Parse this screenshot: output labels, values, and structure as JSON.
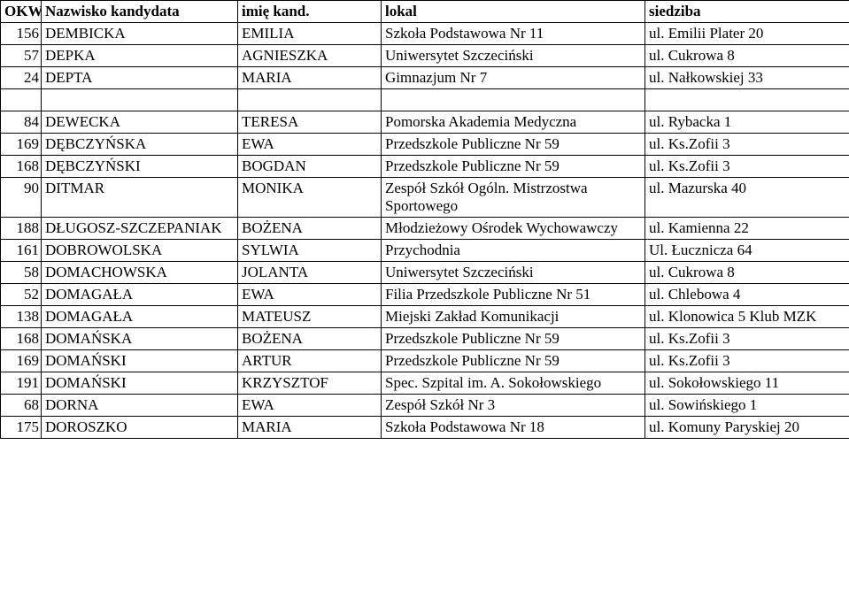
{
  "header": {
    "okw": "OKW",
    "nazwisko": "Nazwisko kandydata",
    "imie": "imię kand.",
    "lokal": "lokal",
    "siedziba": "siedziba"
  },
  "rows": [
    {
      "okw": "156",
      "nazwisko": "DEMBICKA",
      "imie": "EMILIA",
      "lokal": "Szkoła Podstawowa Nr 11",
      "siedziba": "ul. Emilii Plater 20"
    },
    {
      "okw": "57",
      "nazwisko": "DEPKA",
      "imie": "AGNIESZKA",
      "lokal": "Uniwersytet Szczeciński",
      "siedziba": "ul. Cukrowa 8"
    },
    {
      "okw": "24",
      "nazwisko": "DEPTA",
      "imie": "MARIA",
      "lokal": "Gimnazjum Nr 7",
      "siedziba": "ul. Nałkowskiej 33"
    },
    {
      "blank": true
    },
    {
      "okw": "84",
      "nazwisko": "DEWECKA",
      "imie": "TERESA",
      "lokal": "Pomorska Akademia Medyczna",
      "siedziba": "ul. Rybacka 1"
    },
    {
      "okw": "169",
      "nazwisko": "DĘBCZYŃSKA",
      "imie": "EWA",
      "lokal": "Przedszkole Publiczne Nr 59",
      "siedziba": "ul. Ks.Zofii 3"
    },
    {
      "okw": "168",
      "nazwisko": "DĘBCZYŃSKI",
      "imie": "BOGDAN",
      "lokal": "Przedszkole Publiczne Nr 59",
      "siedziba": "ul. Ks.Zofii 3"
    },
    {
      "okw": "90",
      "nazwisko": "DITMAR",
      "imie": "MONIKA",
      "lokal": "Zespół Szkół Ogóln. Mistrzostwa Sportowego",
      "siedziba": "ul. Mazurska 40"
    },
    {
      "okw": "188",
      "nazwisko": "DŁUGOSZ-SZCZEPANIAK",
      "imie": "BOŻENA",
      "lokal": "Młodzieżowy Ośrodek Wychowawczy",
      "siedziba": "ul. Kamienna 22"
    },
    {
      "okw": "161",
      "nazwisko": "DOBROWOLSKA",
      "imie": "SYLWIA",
      "lokal": "Przychodnia",
      "siedziba": "Ul. Łucznicza 64"
    },
    {
      "okw": "58",
      "nazwisko": "DOMACHOWSKA",
      "imie": "JOLANTA",
      "lokal": "Uniwersytet Szczeciński",
      "siedziba": "ul. Cukrowa 8"
    },
    {
      "okw": "52",
      "nazwisko": "DOMAGAŁA",
      "imie": "EWA",
      "lokal": "Filia Przedszkole Publiczne Nr 51",
      "siedziba": "ul. Chlebowa 4"
    },
    {
      "okw": "138",
      "nazwisko": "DOMAGAŁA",
      "imie": "MATEUSZ",
      "lokal": "Miejski Zakład Komunikacji",
      "siedziba": "ul. Klonowica 5 Klub MZK"
    },
    {
      "okw": "168",
      "nazwisko": "DOMAŃSKA",
      "imie": "BOŻENA",
      "lokal": "Przedszkole Publiczne Nr 59",
      "siedziba": "ul. Ks.Zofii 3"
    },
    {
      "okw": "169",
      "nazwisko": "DOMAŃSKI",
      "imie": "ARTUR",
      "lokal": "Przedszkole Publiczne Nr 59",
      "siedziba": "ul. Ks.Zofii 3"
    },
    {
      "okw": "191",
      "nazwisko": "DOMAŃSKI",
      "imie": "KRZYSZTOF",
      "lokal": "Spec. Szpital im. A. Sokołowskiego",
      "siedziba": "ul. Sokołowskiego 11"
    },
    {
      "okw": "68",
      "nazwisko": "DORNA",
      "imie": "EWA",
      "lokal": "Zespół Szkół Nr 3",
      "siedziba": "ul. Sowińskiego 1"
    },
    {
      "okw": "175",
      "nazwisko": "DOROSZKO",
      "imie": "MARIA",
      "lokal": "Szkoła Podstawowa Nr 18",
      "siedziba": "ul. Komuny Paryskiej 20"
    }
  ]
}
